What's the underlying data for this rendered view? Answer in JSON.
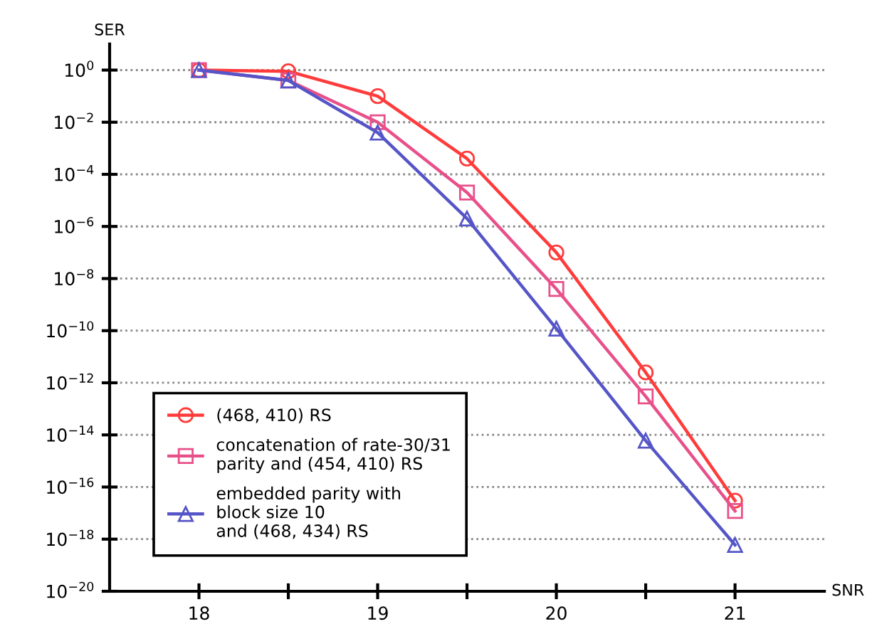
{
  "chart_data": {
    "type": "line",
    "xlabel": "SNR",
    "ylabel": "SER",
    "log": "y",
    "grid": "y",
    "legend": "bottom left",
    "line_style": "solid",
    "x": [
      18,
      18.5,
      19,
      19.5,
      20,
      20.5,
      21
    ],
    "xlim": [
      17.5,
      21.5
    ],
    "ylim": [
      1e-20,
      10
    ],
    "xticks": [
      18,
      {
        "value": 18.5,
        "label": null
      },
      19,
      {
        "value": 19.5,
        "label": null
      },
      20,
      {
        "value": 20.5,
        "label": null
      },
      21
    ],
    "yticks": [
      {
        "value": 1,
        "label": "10$^{0}$"
      },
      {
        "value": 0.01,
        "label": "10$^{−2}$"
      },
      {
        "value": 0.0001,
        "label": "10$^{−4}$"
      },
      {
        "value": 1e-06,
        "label": "10$^{−6}$"
      },
      {
        "value": 1e-08,
        "label": "10$^{−8}$"
      },
      {
        "value": 1e-10,
        "label": "10$^{−10}$"
      },
      {
        "value": 1e-12,
        "label": "10$^{−12}$"
      },
      {
        "value": 1e-14,
        "label": "10$^{−14}$"
      },
      {
        "value": 1e-16,
        "label": "10$^{−16}$"
      },
      {
        "value": 1e-18,
        "label": "10$^{−18}$"
      },
      {
        "value": 1e-20,
        "label": "10$^{−20}$"
      }
    ],
    "series": [
      {
        "name": "(468, 410) RS",
        "color": "#ff3b3b",
        "marker": "circle",
        "values": [
          1,
          0.9,
          0.1,
          0.0004,
          1e-07,
          2.5e-12,
          3e-17
        ]
      },
      {
        "name": "concatenation of rate-30/31\nparity and (454, 410) RS",
        "color": "#e8508a",
        "marker": "square",
        "values": [
          1,
          0.4,
          0.01,
          2e-05,
          4e-09,
          3e-13,
          1.2e-17
        ]
      },
      {
        "name": "embedded parity with\nblock size 10\nand (468, 434) RS",
        "color": "#5555c8",
        "marker": "triangle",
        "values": [
          1,
          0.4,
          0.004,
          2e-06,
          1.2e-10,
          6e-15,
          6e-19
        ]
      }
    ]
  }
}
